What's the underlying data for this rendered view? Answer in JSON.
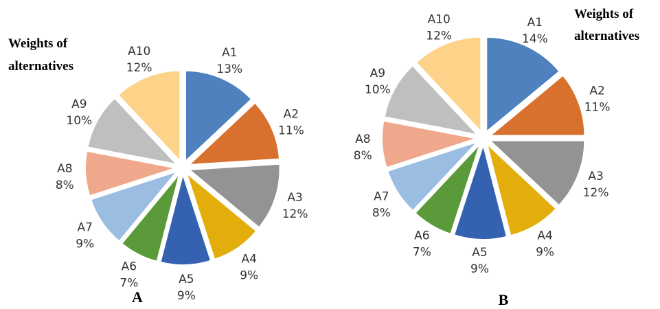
{
  "chart_data": [
    {
      "type": "pie",
      "style": "exploded",
      "title_lines": [
        "Weights of",
        "alternatives"
      ],
      "caption": "A",
      "legend": "none",
      "categories": [
        "A1",
        "A2",
        "A3",
        "A4",
        "A5",
        "A6",
        "A7",
        "A8",
        "A9",
        "A10"
      ],
      "values": [
        13,
        11,
        12,
        9,
        9,
        7,
        9,
        8,
        10,
        12
      ],
      "value_labels": [
        "13%",
        "11%",
        "12%",
        "9%",
        "9%",
        "7%",
        "9%",
        "8%",
        "10%",
        "12%"
      ],
      "colors": [
        "#4e81bd",
        "#d9712e",
        "#939393",
        "#e3ad0c",
        "#3462b0",
        "#5b9a3a",
        "#9bbde2",
        "#efa88b",
        "#bfbfbf",
        "#fdd289"
      ]
    },
    {
      "type": "pie",
      "style": "exploded",
      "title_lines": [
        "Weights of",
        "alternatives"
      ],
      "caption": "B",
      "legend": "none",
      "categories": [
        "A1",
        "A2",
        "A3",
        "A4",
        "A5",
        "A6",
        "A7",
        "A8",
        "A9",
        "A10"
      ],
      "values": [
        14,
        11,
        12,
        9,
        9,
        7,
        8,
        8,
        10,
        12
      ],
      "value_labels": [
        "14%",
        "11%",
        "12%",
        "9%",
        "9%",
        "7%",
        "8%",
        "8%",
        "10%",
        "12%"
      ],
      "colors": [
        "#4e81bd",
        "#d9712e",
        "#939393",
        "#e3ad0c",
        "#3462b0",
        "#5b9a3a",
        "#9bbde2",
        "#efa88b",
        "#bfbfbf",
        "#fdd289"
      ]
    }
  ]
}
